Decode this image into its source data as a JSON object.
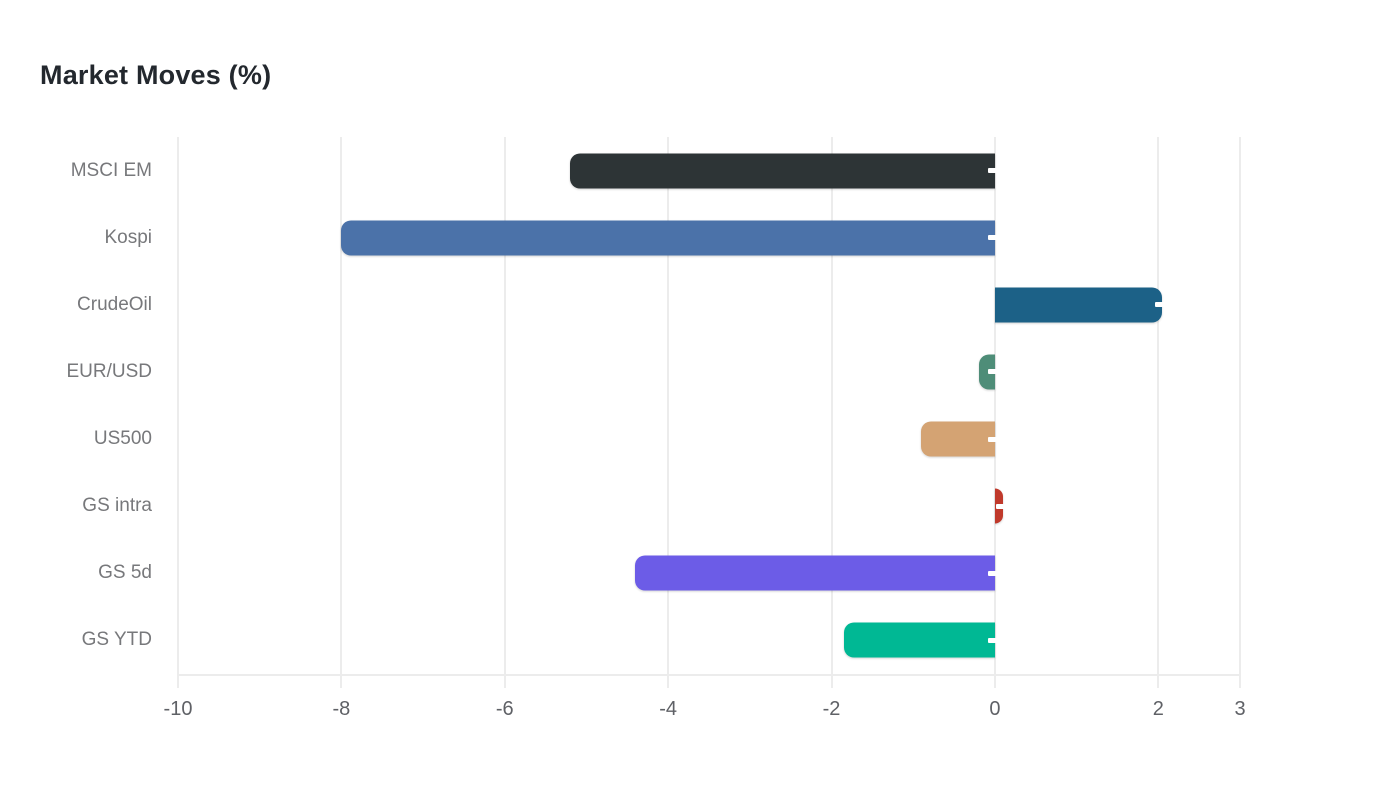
{
  "page": {
    "background": "#ffffff"
  },
  "chart_data": {
    "type": "bar",
    "orientation": "horizontal",
    "title": "Market Moves (%)",
    "categories": [
      "MSCI EM",
      "Kospi",
      "CrudeOil",
      "EUR/USD",
      "US500",
      "GS intra",
      "GS 5d",
      "GS YTD"
    ],
    "values": [
      -5.2,
      -8.0,
      2.05,
      -0.2,
      -0.9,
      0.1,
      -4.4,
      -1.85
    ],
    "bar_colors": [
      "#2d3436",
      "#4b72a9",
      "#1c6187",
      "#4e8d78",
      "#d4a373",
      "#c0392b",
      "#6c5ce7",
      "#00b894"
    ],
    "xlim": [
      -10,
      3
    ],
    "x_ticks": [
      -10,
      -8,
      -6,
      -4,
      -2,
      0,
      2,
      3
    ],
    "x_tick_labels": [
      "-10",
      "-8",
      "-6",
      "-4",
      "-2",
      "0",
      "2",
      "3"
    ],
    "xlabel": "",
    "ylabel": "",
    "grid": "vertical",
    "legend": "none",
    "grid_color": "#ececec",
    "axis_tick_label_color": "#5f6166",
    "category_label_color": "#77787b",
    "title_color": "#23282e",
    "bar_end_marker_color": "#ffffff"
  }
}
